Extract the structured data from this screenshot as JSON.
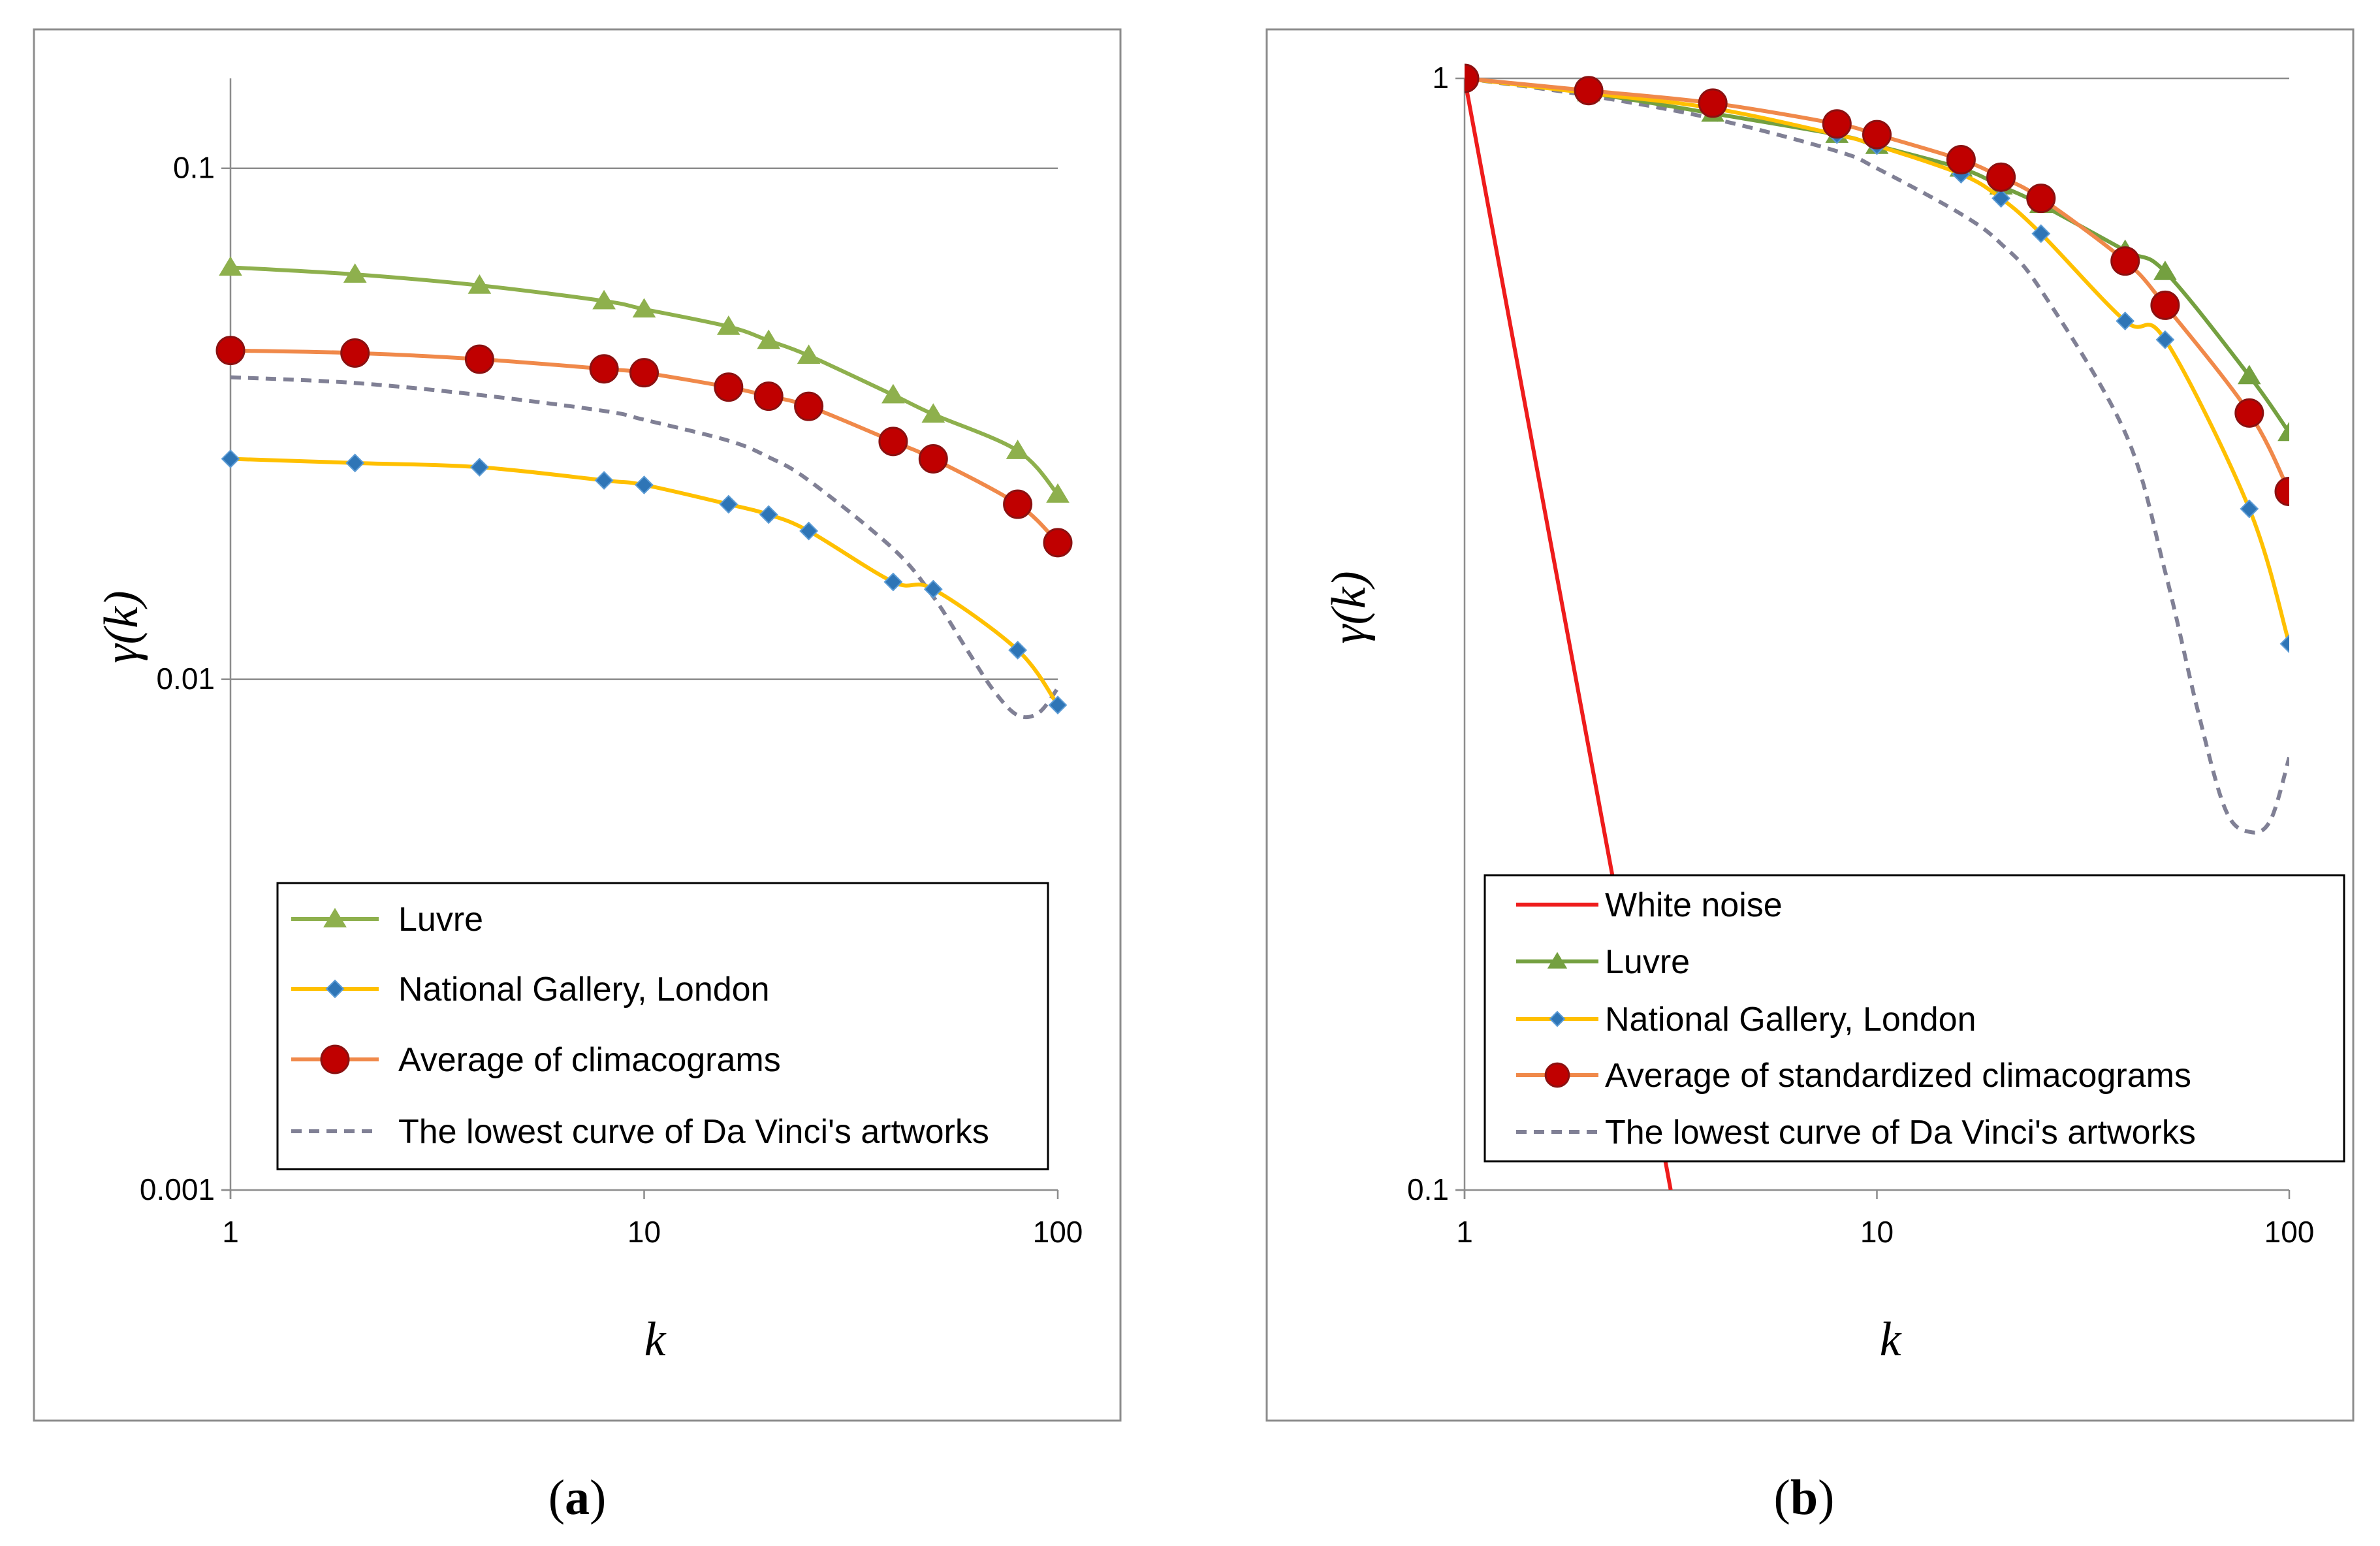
{
  "chart_data": [
    {
      "type": "line",
      "panel": "(a)",
      "panel_letter": "a",
      "xscale": "log",
      "yscale": "log",
      "xlim": [
        1,
        100
      ],
      "ylim": [
        0.001,
        0.15
      ],
      "xticks": [
        1,
        10,
        100
      ],
      "xtick_labels": [
        "1",
        "10",
        "100"
      ],
      "yticks": [
        0.001,
        0.01,
        0.1
      ],
      "ytick_labels": [
        "0.001",
        "0.01",
        "0.1"
      ],
      "gridlines_y": [
        0.01,
        0.1
      ],
      "xlabel": "k",
      "ylabel": "γ(k)",
      "legend_position": "bottom",
      "series": [
        {
          "name": "Luvre",
          "color": "#8eb04d",
          "marker": "triangle",
          "x": [
            1,
            2,
            4,
            8,
            10,
            16,
            20,
            25,
            40,
            50,
            80,
            100
          ],
          "y": [
            0.064,
            0.062,
            0.059,
            0.055,
            0.053,
            0.049,
            0.046,
            0.043,
            0.036,
            0.033,
            0.028,
            0.023
          ]
        },
        {
          "name": "National Gallery, London",
          "color": "#ffc000",
          "marker": "diamond",
          "x": [
            1,
            2,
            4,
            8,
            10,
            16,
            20,
            25,
            40,
            50,
            80,
            100
          ],
          "y": [
            0.027,
            0.0265,
            0.026,
            0.0245,
            0.024,
            0.022,
            0.021,
            0.0195,
            0.0155,
            0.015,
            0.0114,
            0.0089
          ]
        },
        {
          "name": "Average of climacograms",
          "color": "#f0894a",
          "marker": "circle",
          "x": [
            1,
            2,
            4,
            8,
            10,
            16,
            20,
            25,
            40,
            50,
            80,
            100
          ],
          "y": [
            0.044,
            0.0435,
            0.0423,
            0.0405,
            0.0398,
            0.0373,
            0.0358,
            0.0342,
            0.0292,
            0.027,
            0.022,
            0.0185
          ]
        },
        {
          "name": "The lowest curve of Da Vinci's artworks",
          "color": "#808095",
          "marker": "none",
          "dashed": true,
          "x": [
            1,
            2,
            4,
            8,
            10,
            16,
            20,
            25,
            40,
            50,
            60,
            70,
            80,
            90,
            100
          ],
          "y": [
            0.039,
            0.038,
            0.036,
            0.0335,
            0.0322,
            0.0293,
            0.0272,
            0.0245,
            0.018,
            0.0145,
            0.0115,
            0.0095,
            0.0085,
            0.0086,
            0.0096
          ]
        }
      ]
    },
    {
      "type": "line",
      "panel": "(b)",
      "panel_letter": "b",
      "xscale": "log",
      "yscale": "log",
      "xlim": [
        1,
        100
      ],
      "ylim": [
        0.1,
        1
      ],
      "xticks": [
        1,
        10,
        100
      ],
      "xtick_labels": [
        "1",
        "10",
        "100"
      ],
      "yticks": [
        0.1,
        1
      ],
      "ytick_labels": [
        "0.1",
        "1"
      ],
      "gridlines_y": [
        1
      ],
      "xlabel": "k",
      "ylabel": "γ(k)",
      "legend_position": "bottom",
      "series": [
        {
          "name": "White noise",
          "color": "#ee1c1c",
          "marker": "none",
          "x": [
            1,
            3.162
          ],
          "y": [
            1,
            0.1
          ],
          "clip": true
        },
        {
          "name": "Luvre",
          "color": "#74a040",
          "marker": "triangle",
          "x": [
            1,
            2,
            4,
            8,
            10,
            16,
            20,
            25,
            40,
            50,
            80,
            100
          ],
          "y": [
            1,
            0.97,
            0.93,
            0.89,
            0.87,
            0.83,
            0.8,
            0.77,
            0.7,
            0.67,
            0.54,
            0.48
          ]
        },
        {
          "name": "National Gallery, London",
          "color": "#ffc000",
          "marker": "diamond",
          "x": [
            1,
            2,
            4,
            8,
            10,
            16,
            20,
            25,
            40,
            50,
            80,
            100
          ],
          "y": [
            1,
            0.97,
            0.94,
            0.89,
            0.87,
            0.82,
            0.78,
            0.725,
            0.605,
            0.582,
            0.41,
            0.31
          ]
        },
        {
          "name": "Average of standardized climacograms",
          "color": "#f0894a",
          "marker": "circle",
          "x": [
            1,
            2,
            4,
            8,
            10,
            16,
            20,
            25,
            40,
            50,
            80,
            100
          ],
          "y": [
            1,
            0.975,
            0.95,
            0.91,
            0.89,
            0.845,
            0.815,
            0.78,
            0.685,
            0.625,
            0.5,
            0.425
          ]
        },
        {
          "name": "The lowest curve of Da Vinci's artworks",
          "color": "#808095",
          "marker": "none",
          "dashed": true,
          "x": [
            1,
            2,
            4,
            8,
            10,
            16,
            20,
            25,
            40,
            50,
            60,
            70,
            80,
            90,
            100
          ],
          "y": [
            1,
            0.965,
            0.92,
            0.86,
            0.83,
            0.755,
            0.71,
            0.645,
            0.48,
            0.36,
            0.27,
            0.22,
            0.21,
            0.215,
            0.245
          ]
        }
      ]
    }
  ]
}
